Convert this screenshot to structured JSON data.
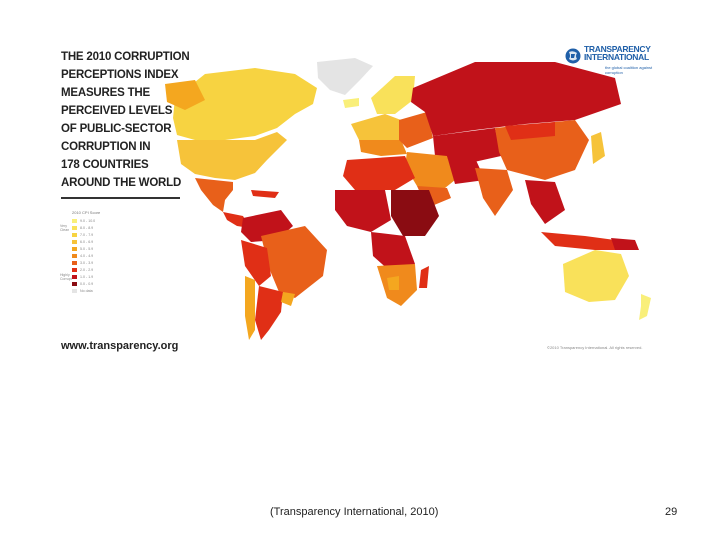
{
  "map": {
    "headline_lines": [
      "THE 2010 CORRUPTION",
      "PERCEPTIONS INDEX",
      "MEASURES THE",
      "PERCEIVED LEVELS",
      "OF PUBLIC-SECTOR",
      "CORRUPTION IN",
      "178 COUNTRIES",
      "AROUND THE WORLD"
    ],
    "legend": {
      "title": "2010 CPI Score",
      "very_clean_label": "Very Clean",
      "highly_corrupt_label": "Highly Corrupt",
      "items": [
        {
          "range": "9.0 - 10.0",
          "color": "#f9ef7a"
        },
        {
          "range": "8.0 - 8.9",
          "color": "#f9e15a"
        },
        {
          "range": "7.0 - 7.9",
          "color": "#f7d341"
        },
        {
          "range": "6.0 - 6.9",
          "color": "#f6c33a"
        },
        {
          "range": "5.0 - 5.9",
          "color": "#f4a71f"
        },
        {
          "range": "4.0 - 4.9",
          "color": "#f08a1c"
        },
        {
          "range": "3.0 - 3.9",
          "color": "#e8601a"
        },
        {
          "range": "2.0 - 2.9",
          "color": "#e02f16"
        },
        {
          "range": "1.0 - 1.9",
          "color": "#c1121a"
        },
        {
          "range": "0.0 - 0.9",
          "color": "#8a0c12"
        },
        {
          "range": "No data",
          "color": "#e4e4e4"
        }
      ]
    },
    "website": "www.transparency.org",
    "copyright": "©2010 Transparency International. All rights reserved.",
    "logo": {
      "name": "TRANSPARENCY\nINTERNATIONAL",
      "tagline": "the global coalition against corruption",
      "icon": "globe-icon"
    }
  },
  "caption": "(Transparency International, 2010)",
  "page_number": "29"
}
